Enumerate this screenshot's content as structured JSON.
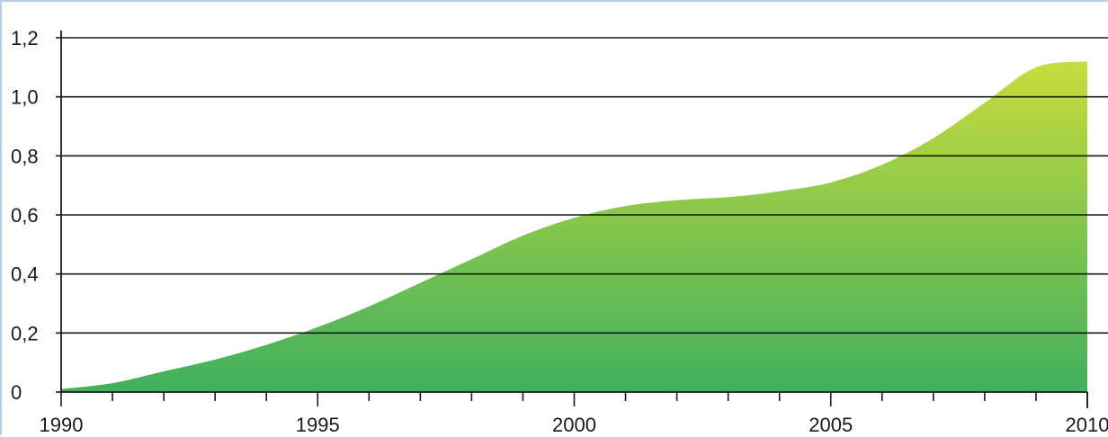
{
  "chart_data": {
    "type": "area",
    "title": "",
    "xlabel": "",
    "ylabel": "",
    "x": [
      1990,
      1991,
      1992,
      1993,
      1994,
      1995,
      1996,
      1997,
      1998,
      1999,
      2000,
      2001,
      2002,
      2003,
      2004,
      2005,
      2006,
      2007,
      2008,
      2009,
      2010
    ],
    "series": [
      {
        "values": [
          0.01,
          0.03,
          0.07,
          0.11,
          0.16,
          0.22,
          0.29,
          0.37,
          0.45,
          0.53,
          0.59,
          0.63,
          0.65,
          0.66,
          0.68,
          0.71,
          0.77,
          0.86,
          0.98,
          1.1,
          1.12
        ]
      }
    ],
    "xlim": [
      1990,
      2010
    ],
    "ylim": [
      0,
      1.2
    ],
    "x_ticks": [
      "1990",
      "1995",
      "2000",
      "2005",
      "2010"
    ],
    "y_ticks": [
      "0",
      "0,2",
      "0,4",
      "0,6",
      "0,8",
      "1,0",
      "1,2"
    ],
    "grid": "horizontal",
    "legend": "none",
    "colors": {
      "fill_top": "#c8dc3c",
      "fill_bottom": "#3fb05e",
      "grid": "#1a1a1a",
      "axis": "#1a1a1a",
      "frame": "#b9cde0"
    }
  }
}
